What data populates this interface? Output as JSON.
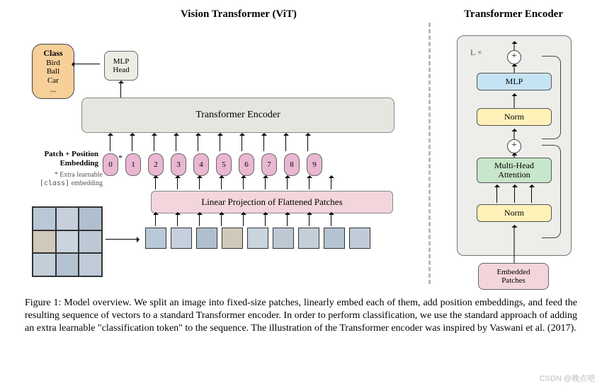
{
  "titles": {
    "left": "Vision Transformer (ViT)",
    "right": "Transformer Encoder"
  },
  "vit": {
    "class_box": {
      "head": "Class",
      "items": [
        "Bird",
        "Ball",
        "Car",
        "..."
      ]
    },
    "mlp_head": {
      "l1": "MLP",
      "l2": "Head"
    },
    "encoder_label": "Transformer Encoder",
    "tokens": [
      "0",
      "1",
      "2",
      "3",
      "4",
      "5",
      "6",
      "7",
      "8",
      "9"
    ],
    "token_fill": "#e9b7d1",
    "pp_label": {
      "l1": "Patch + Position",
      "l2": "Embedding"
    },
    "pp_sub": {
      "l1": "* Extra learnable",
      "l2_code": "[class]",
      "l2_tail": " embedding"
    },
    "linproj": "Linear Projection of Flattened Patches",
    "patches_count": 9,
    "thumb_grid": 9,
    "patch_colors": [
      "#b8c8d6",
      "#c5d0dc",
      "#b0bfcd",
      "#d0c8b8",
      "#c8d4de",
      "#bcc9d5",
      "#c2cfd9",
      "#b4c3d1",
      "#bfccd8"
    ],
    "thumb_colors": [
      "#b8c8d6",
      "#c5d0dc",
      "#b0bfcd",
      "#d0c8b8",
      "#c8d4de",
      "#bcc9d5",
      "#c2cfd9",
      "#b4c3d1",
      "#bfccd8"
    ]
  },
  "encoder": {
    "lx": "L ×",
    "plus": "+",
    "mlp": "MLP",
    "norm": "Norm",
    "mha": {
      "l1": "Multi-Head",
      "l2": "Attention"
    },
    "embedded": {
      "l1": "Embedded",
      "l2": "Patches"
    },
    "colors": {
      "outer_bg": "#ededea",
      "mlp_bg": "#c5e4f3",
      "norm_bg": "#fff1b8",
      "mha_bg": "#c8e6c9",
      "emb_bg": "#f3d5dc"
    }
  },
  "caption": {
    "text": "Figure 1: Model overview. We split an image into fixed-size patches, linearly embed each of them, add position embeddings, and feed the resulting sequence of vectors to a standard Transformer encoder. In order to perform classification, we use the standard approach of adding an extra learnable \"classification token\" to the sequence. The illustration of the Transformer encoder was inspired by Vaswani et al. (2017).",
    "fontsize": 14
  },
  "watermark": "CSDN @晚点吧"
}
